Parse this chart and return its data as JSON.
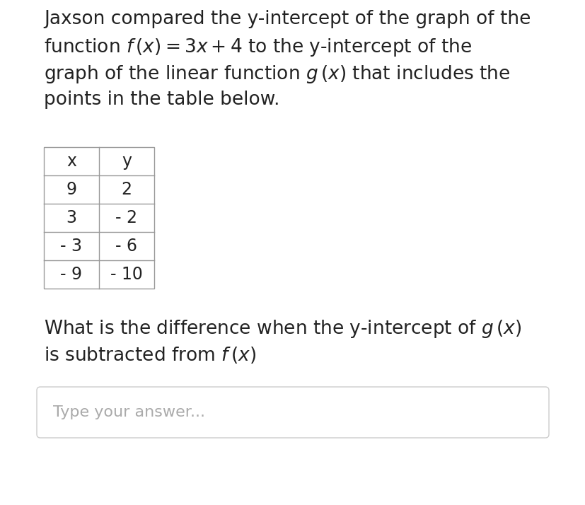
{
  "bg_color": "#ffffff",
  "text_color": "#222222",
  "paragraph1_lines": [
    "Jaxson compared the y-intercept of the graph of the",
    "function $f\\,(x) = 3x + 4$ to the y-intercept of the",
    "graph of the linear function $g\\,(x)$ that includes the",
    "points in the table below."
  ],
  "table_headers": [
    "x",
    "y"
  ],
  "table_data": [
    [
      "9",
      "2"
    ],
    [
      "3",
      "- 2"
    ],
    [
      "- 3",
      "- 6"
    ],
    [
      "- 9",
      "- 10"
    ]
  ],
  "paragraph2_lines": [
    "What is the difference when the y-intercept of $g\\,(x)$",
    "is subtracted from $f\\,(x)$"
  ],
  "answer_placeholder": "Type your answer...",
  "font_size_main": 19,
  "font_size_table": 17,
  "font_size_placeholder": 16
}
